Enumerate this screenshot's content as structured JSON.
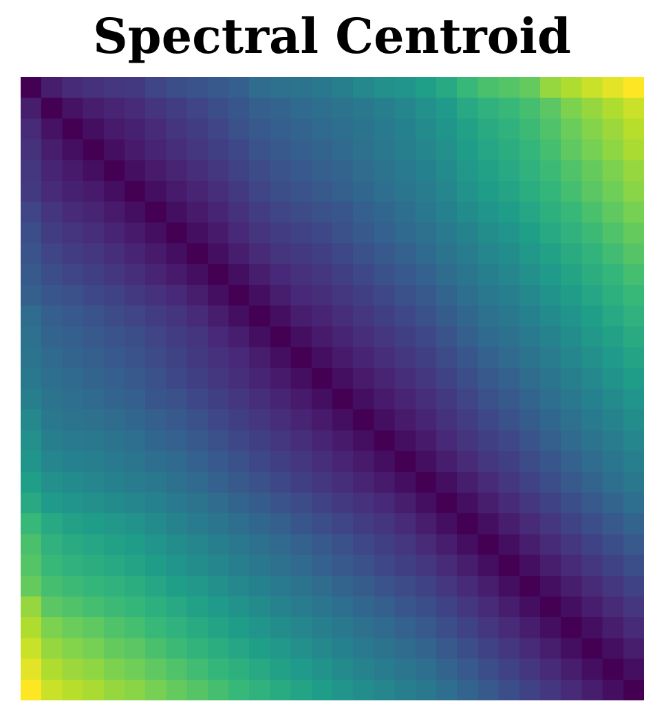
{
  "chart_data": {
    "type": "heatmap",
    "title": "Spectral Centroid",
    "xlabel": "",
    "ylabel": "",
    "grid": false,
    "legend": "none",
    "colormap": "viridis",
    "n": 30,
    "value_range": [
      0,
      1
    ],
    "description_of_values": "Symmetric self-similarity distance matrix; value grows with |row - col|. Values estimated from colour.",
    "matrix": [
      [
        0.0,
        0.08,
        0.12,
        0.14,
        0.16,
        0.17,
        0.21,
        0.24,
        0.26,
        0.28,
        0.3,
        0.35,
        0.37,
        0.38,
        0.4,
        0.43,
        0.47,
        0.5,
        0.52,
        0.56,
        0.6,
        0.67,
        0.71,
        0.73,
        0.76,
        0.84,
        0.88,
        0.92,
        0.96,
        1.0
      ],
      [
        0.08,
        0.0,
        0.05,
        0.08,
        0.1,
        0.12,
        0.15,
        0.18,
        0.21,
        0.24,
        0.27,
        0.3,
        0.32,
        0.34,
        0.36,
        0.38,
        0.4,
        0.43,
        0.46,
        0.5,
        0.54,
        0.6,
        0.64,
        0.67,
        0.7,
        0.74,
        0.8,
        0.84,
        0.88,
        0.92
      ],
      [
        0.12,
        0.05,
        0.0,
        0.04,
        0.07,
        0.09,
        0.12,
        0.15,
        0.18,
        0.21,
        0.25,
        0.28,
        0.3,
        0.32,
        0.34,
        0.36,
        0.38,
        0.41,
        0.44,
        0.48,
        0.52,
        0.57,
        0.61,
        0.64,
        0.68,
        0.72,
        0.77,
        0.81,
        0.85,
        0.89
      ],
      [
        0.14,
        0.08,
        0.04,
        0.0,
        0.04,
        0.07,
        0.1,
        0.13,
        0.16,
        0.19,
        0.22,
        0.26,
        0.28,
        0.3,
        0.32,
        0.34,
        0.37,
        0.4,
        0.43,
        0.46,
        0.5,
        0.55,
        0.59,
        0.62,
        0.66,
        0.7,
        0.75,
        0.79,
        0.83,
        0.87
      ],
      [
        0.16,
        0.1,
        0.07,
        0.04,
        0.0,
        0.04,
        0.07,
        0.1,
        0.13,
        0.16,
        0.2,
        0.23,
        0.26,
        0.28,
        0.3,
        0.32,
        0.35,
        0.38,
        0.41,
        0.44,
        0.48,
        0.53,
        0.57,
        0.6,
        0.64,
        0.68,
        0.72,
        0.76,
        0.8,
        0.84
      ],
      [
        0.17,
        0.12,
        0.09,
        0.07,
        0.04,
        0.0,
        0.04,
        0.07,
        0.1,
        0.13,
        0.17,
        0.21,
        0.24,
        0.26,
        0.28,
        0.3,
        0.33,
        0.36,
        0.39,
        0.42,
        0.46,
        0.51,
        0.55,
        0.58,
        0.62,
        0.66,
        0.7,
        0.74,
        0.78,
        0.82
      ],
      [
        0.21,
        0.15,
        0.12,
        0.1,
        0.07,
        0.04,
        0.0,
        0.04,
        0.07,
        0.1,
        0.14,
        0.18,
        0.21,
        0.23,
        0.25,
        0.27,
        0.3,
        0.33,
        0.36,
        0.4,
        0.44,
        0.48,
        0.52,
        0.55,
        0.59,
        0.63,
        0.67,
        0.71,
        0.75,
        0.79
      ],
      [
        0.24,
        0.18,
        0.15,
        0.13,
        0.1,
        0.07,
        0.04,
        0.0,
        0.04,
        0.07,
        0.11,
        0.15,
        0.18,
        0.2,
        0.22,
        0.25,
        0.28,
        0.31,
        0.34,
        0.37,
        0.41,
        0.45,
        0.49,
        0.52,
        0.56,
        0.6,
        0.64,
        0.68,
        0.72,
        0.76
      ],
      [
        0.26,
        0.21,
        0.18,
        0.16,
        0.13,
        0.1,
        0.07,
        0.04,
        0.0,
        0.04,
        0.08,
        0.12,
        0.15,
        0.17,
        0.19,
        0.22,
        0.25,
        0.28,
        0.31,
        0.34,
        0.38,
        0.42,
        0.46,
        0.49,
        0.53,
        0.57,
        0.61,
        0.65,
        0.69,
        0.73
      ],
      [
        0.28,
        0.24,
        0.21,
        0.19,
        0.16,
        0.13,
        0.1,
        0.07,
        0.04,
        0.0,
        0.04,
        0.08,
        0.11,
        0.14,
        0.16,
        0.19,
        0.22,
        0.25,
        0.28,
        0.31,
        0.35,
        0.39,
        0.43,
        0.46,
        0.5,
        0.54,
        0.58,
        0.62,
        0.66,
        0.7
      ],
      [
        0.3,
        0.27,
        0.25,
        0.22,
        0.2,
        0.17,
        0.14,
        0.11,
        0.08,
        0.04,
        0.0,
        0.04,
        0.08,
        0.11,
        0.13,
        0.16,
        0.19,
        0.22,
        0.25,
        0.28,
        0.32,
        0.36,
        0.4,
        0.43,
        0.47,
        0.51,
        0.55,
        0.59,
        0.63,
        0.67
      ],
      [
        0.35,
        0.3,
        0.28,
        0.26,
        0.23,
        0.21,
        0.18,
        0.15,
        0.12,
        0.08,
        0.04,
        0.0,
        0.04,
        0.08,
        0.1,
        0.13,
        0.16,
        0.19,
        0.22,
        0.25,
        0.29,
        0.33,
        0.37,
        0.4,
        0.44,
        0.48,
        0.52,
        0.56,
        0.6,
        0.64
      ],
      [
        0.37,
        0.32,
        0.3,
        0.28,
        0.26,
        0.24,
        0.21,
        0.18,
        0.15,
        0.11,
        0.08,
        0.04,
        0.0,
        0.04,
        0.07,
        0.1,
        0.13,
        0.16,
        0.19,
        0.22,
        0.26,
        0.3,
        0.34,
        0.37,
        0.41,
        0.45,
        0.49,
        0.53,
        0.57,
        0.61
      ],
      [
        0.38,
        0.34,
        0.32,
        0.3,
        0.28,
        0.26,
        0.23,
        0.2,
        0.17,
        0.14,
        0.11,
        0.08,
        0.04,
        0.0,
        0.04,
        0.07,
        0.1,
        0.13,
        0.16,
        0.19,
        0.23,
        0.27,
        0.31,
        0.34,
        0.38,
        0.42,
        0.46,
        0.5,
        0.54,
        0.58
      ],
      [
        0.4,
        0.36,
        0.34,
        0.32,
        0.3,
        0.28,
        0.25,
        0.22,
        0.19,
        0.16,
        0.13,
        0.1,
        0.07,
        0.04,
        0.0,
        0.04,
        0.07,
        0.1,
        0.13,
        0.16,
        0.2,
        0.24,
        0.28,
        0.31,
        0.35,
        0.39,
        0.43,
        0.47,
        0.51,
        0.55
      ],
      [
        0.43,
        0.38,
        0.36,
        0.34,
        0.32,
        0.3,
        0.27,
        0.25,
        0.22,
        0.19,
        0.16,
        0.13,
        0.1,
        0.07,
        0.04,
        0.0,
        0.04,
        0.07,
        0.1,
        0.13,
        0.17,
        0.21,
        0.25,
        0.28,
        0.32,
        0.36,
        0.4,
        0.44,
        0.48,
        0.52
      ],
      [
        0.47,
        0.4,
        0.38,
        0.37,
        0.35,
        0.33,
        0.3,
        0.28,
        0.25,
        0.22,
        0.19,
        0.16,
        0.13,
        0.1,
        0.07,
        0.04,
        0.0,
        0.04,
        0.07,
        0.1,
        0.14,
        0.18,
        0.22,
        0.25,
        0.29,
        0.33,
        0.37,
        0.41,
        0.45,
        0.49
      ],
      [
        0.5,
        0.43,
        0.41,
        0.4,
        0.38,
        0.36,
        0.33,
        0.31,
        0.28,
        0.25,
        0.22,
        0.19,
        0.16,
        0.13,
        0.1,
        0.07,
        0.04,
        0.0,
        0.04,
        0.07,
        0.11,
        0.15,
        0.19,
        0.22,
        0.26,
        0.3,
        0.34,
        0.38,
        0.42,
        0.46
      ],
      [
        0.52,
        0.46,
        0.44,
        0.43,
        0.41,
        0.39,
        0.36,
        0.34,
        0.31,
        0.28,
        0.25,
        0.22,
        0.19,
        0.16,
        0.13,
        0.1,
        0.07,
        0.04,
        0.0,
        0.04,
        0.08,
        0.12,
        0.16,
        0.19,
        0.23,
        0.27,
        0.31,
        0.35,
        0.39,
        0.43
      ],
      [
        0.56,
        0.5,
        0.48,
        0.46,
        0.44,
        0.42,
        0.4,
        0.37,
        0.34,
        0.31,
        0.28,
        0.25,
        0.22,
        0.19,
        0.16,
        0.13,
        0.1,
        0.07,
        0.04,
        0.0,
        0.04,
        0.08,
        0.12,
        0.16,
        0.2,
        0.24,
        0.28,
        0.32,
        0.36,
        0.4
      ],
      [
        0.6,
        0.54,
        0.52,
        0.5,
        0.48,
        0.46,
        0.44,
        0.41,
        0.38,
        0.35,
        0.32,
        0.29,
        0.26,
        0.23,
        0.2,
        0.17,
        0.14,
        0.11,
        0.08,
        0.04,
        0.0,
        0.04,
        0.08,
        0.12,
        0.16,
        0.2,
        0.24,
        0.28,
        0.32,
        0.36
      ],
      [
        0.67,
        0.6,
        0.57,
        0.55,
        0.53,
        0.51,
        0.48,
        0.45,
        0.42,
        0.39,
        0.36,
        0.33,
        0.3,
        0.27,
        0.24,
        0.21,
        0.18,
        0.15,
        0.12,
        0.08,
        0.04,
        0.0,
        0.04,
        0.08,
        0.12,
        0.16,
        0.2,
        0.24,
        0.28,
        0.32
      ],
      [
        0.71,
        0.64,
        0.61,
        0.59,
        0.57,
        0.55,
        0.52,
        0.49,
        0.46,
        0.43,
        0.4,
        0.37,
        0.34,
        0.31,
        0.28,
        0.25,
        0.22,
        0.19,
        0.16,
        0.12,
        0.08,
        0.04,
        0.0,
        0.04,
        0.08,
        0.12,
        0.16,
        0.2,
        0.24,
        0.28
      ],
      [
        0.73,
        0.67,
        0.64,
        0.62,
        0.6,
        0.58,
        0.55,
        0.52,
        0.49,
        0.46,
        0.43,
        0.4,
        0.37,
        0.34,
        0.31,
        0.28,
        0.25,
        0.22,
        0.19,
        0.16,
        0.12,
        0.08,
        0.04,
        0.0,
        0.04,
        0.08,
        0.12,
        0.16,
        0.2,
        0.24
      ],
      [
        0.76,
        0.7,
        0.68,
        0.66,
        0.64,
        0.62,
        0.59,
        0.56,
        0.53,
        0.5,
        0.47,
        0.44,
        0.41,
        0.38,
        0.35,
        0.32,
        0.29,
        0.26,
        0.23,
        0.2,
        0.16,
        0.12,
        0.08,
        0.04,
        0.0,
        0.04,
        0.08,
        0.12,
        0.16,
        0.2
      ],
      [
        0.84,
        0.74,
        0.72,
        0.7,
        0.68,
        0.66,
        0.63,
        0.6,
        0.57,
        0.54,
        0.51,
        0.48,
        0.45,
        0.42,
        0.39,
        0.36,
        0.33,
        0.3,
        0.27,
        0.24,
        0.2,
        0.16,
        0.12,
        0.08,
        0.04,
        0.0,
        0.04,
        0.08,
        0.12,
        0.16
      ],
      [
        0.88,
        0.8,
        0.77,
        0.75,
        0.72,
        0.7,
        0.67,
        0.64,
        0.61,
        0.58,
        0.55,
        0.52,
        0.49,
        0.46,
        0.43,
        0.4,
        0.37,
        0.34,
        0.31,
        0.28,
        0.24,
        0.2,
        0.16,
        0.12,
        0.08,
        0.04,
        0.0,
        0.04,
        0.08,
        0.12
      ],
      [
        0.92,
        0.84,
        0.81,
        0.79,
        0.76,
        0.74,
        0.71,
        0.68,
        0.65,
        0.62,
        0.59,
        0.56,
        0.53,
        0.5,
        0.47,
        0.44,
        0.41,
        0.38,
        0.35,
        0.32,
        0.28,
        0.24,
        0.2,
        0.16,
        0.12,
        0.08,
        0.04,
        0.0,
        0.04,
        0.08
      ],
      [
        0.96,
        0.88,
        0.85,
        0.83,
        0.8,
        0.78,
        0.75,
        0.72,
        0.69,
        0.66,
        0.63,
        0.6,
        0.57,
        0.54,
        0.51,
        0.48,
        0.45,
        0.42,
        0.39,
        0.36,
        0.32,
        0.28,
        0.24,
        0.2,
        0.16,
        0.12,
        0.08,
        0.04,
        0.0,
        0.04
      ],
      [
        1.0,
        0.92,
        0.89,
        0.87,
        0.84,
        0.82,
        0.79,
        0.76,
        0.73,
        0.7,
        0.67,
        0.64,
        0.61,
        0.58,
        0.55,
        0.52,
        0.49,
        0.46,
        0.43,
        0.4,
        0.36,
        0.32,
        0.28,
        0.24,
        0.2,
        0.16,
        0.12,
        0.08,
        0.04,
        0.0
      ]
    ]
  },
  "colors": {
    "background": "#ffffff",
    "title": "#000000",
    "viridis_stops": [
      "#440154",
      "#482878",
      "#3e4989",
      "#31688e",
      "#26828e",
      "#1f9e89",
      "#35b779",
      "#6ece58",
      "#b5de2b",
      "#fde725"
    ]
  }
}
